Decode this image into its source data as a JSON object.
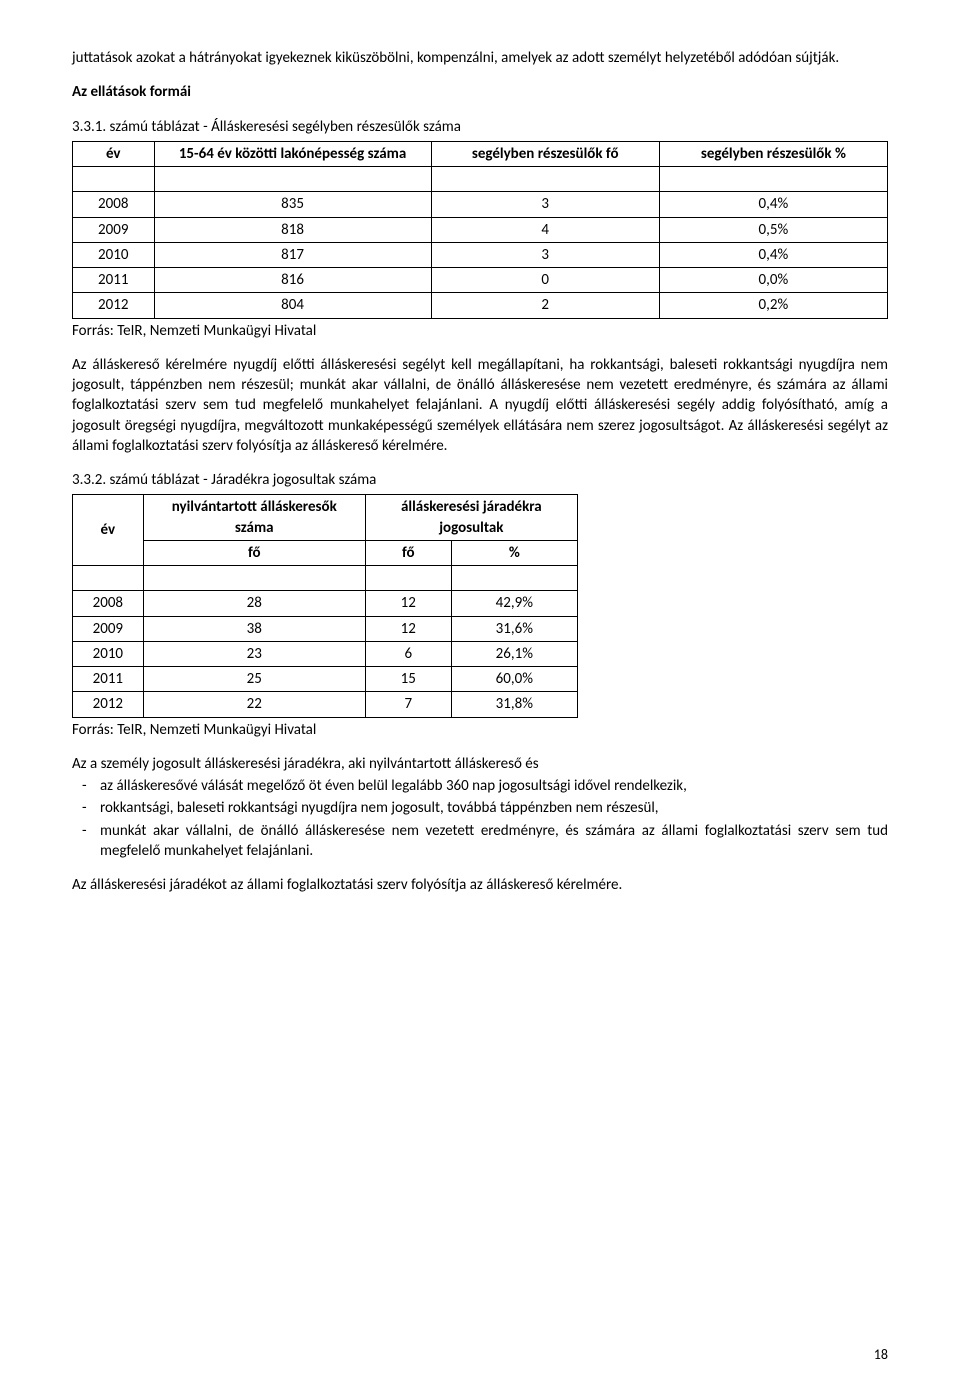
{
  "intro": {
    "p1": "juttatások azokat a hátrányokat igyekeznek kiküszöbölni, kompenzálni, amelyek az adott személyt helyzetéből adódóan sújtják.",
    "heading": "Az ellátások formái",
    "tableCaption": "3.3.1. számú táblázat - Álláskeresési segélyben részesülők száma"
  },
  "table1": {
    "headers": {
      "year": "év",
      "pop": "15-64 év közötti lakónépesség száma",
      "count": "segélyben részesülők fő",
      "pct": "segélyben részesülők %"
    },
    "rows": [
      {
        "year": "2008",
        "pop": "835",
        "count": "3",
        "pct": "0,4%"
      },
      {
        "year": "2009",
        "pop": "818",
        "count": "4",
        "pct": "0,5%"
      },
      {
        "year": "2010",
        "pop": "817",
        "count": "3",
        "pct": "0,4%"
      },
      {
        "year": "2011",
        "pop": "816",
        "count": "0",
        "pct": "0,0%"
      },
      {
        "year": "2012",
        "pop": "804",
        "count": "2",
        "pct": "0,2%"
      }
    ],
    "source": "Forrás: TeIR, Nemzeti Munkaügyi Hivatal"
  },
  "para2": "Az álláskereső kérelmére nyugdíj előtti álláskeresési segélyt kell megállapítani, ha rokkantsági, baleseti rokkantsági nyugdíjra nem jogosult, táppénzben nem részesül; munkát akar vállalni, de önálló álláskeresése nem vezetett eredményre, és számára az állami foglalkoztatási szerv sem tud megfelelő munkahelyet felajánlani. A nyugdíj előtti álláskeresési segély addig folyósítható, amíg a jogosult öregségi nyugdíjra, megváltozott munkaképességű személyek ellátására nem szerez jogosultságot. Az álláskeresési segélyt az állami foglalkoztatási szerv folyósítja az álláskereső kérelmére.",
  "table2Caption": "3.3.2. számú táblázat - Járadékra jogosultak száma",
  "table2": {
    "headers": {
      "year": "év",
      "registered": "nyilvántartott álláskeresők száma",
      "eligible": "álláskeresési járadékra jogosultak",
      "fo": "fő",
      "pct": "%"
    },
    "rows": [
      {
        "year": "2008",
        "reg": "28",
        "cnt": "12",
        "pct": "42,9%"
      },
      {
        "year": "2009",
        "reg": "38",
        "cnt": "12",
        "pct": "31,6%"
      },
      {
        "year": "2010",
        "reg": "23",
        "cnt": "6",
        "pct": "26,1%"
      },
      {
        "year": "2011",
        "reg": "25",
        "cnt": "15",
        "pct": "60,0%"
      },
      {
        "year": "2012",
        "reg": "22",
        "cnt": "7",
        "pct": "31,8%"
      }
    ],
    "source": "Forrás: TeIR, Nemzeti Munkaügyi Hivatal"
  },
  "para3Lead": "Az a személy jogosult álláskeresési járadékra, aki nyilvántartott álláskereső és",
  "bullets": [
    "az álláskeresővé válását megelőző öt éven belül legalább 360 nap jogosultsági idővel rendelkezik,",
    "rokkantsági, baleseti rokkantsági nyugdíjra nem jogosult, továbbá táppénzben nem részesül,",
    "munkát akar vállalni, de önálló álláskeresése nem vezetett eredményre, és számára az állami foglalkoztatási szerv sem tud megfelelő munkahelyet felajánlani."
  ],
  "para4": "Az álláskeresési járadékot az állami foglalkoztatási szerv folyósítja az álláskereső kérelmére.",
  "pageNumber": "18"
}
